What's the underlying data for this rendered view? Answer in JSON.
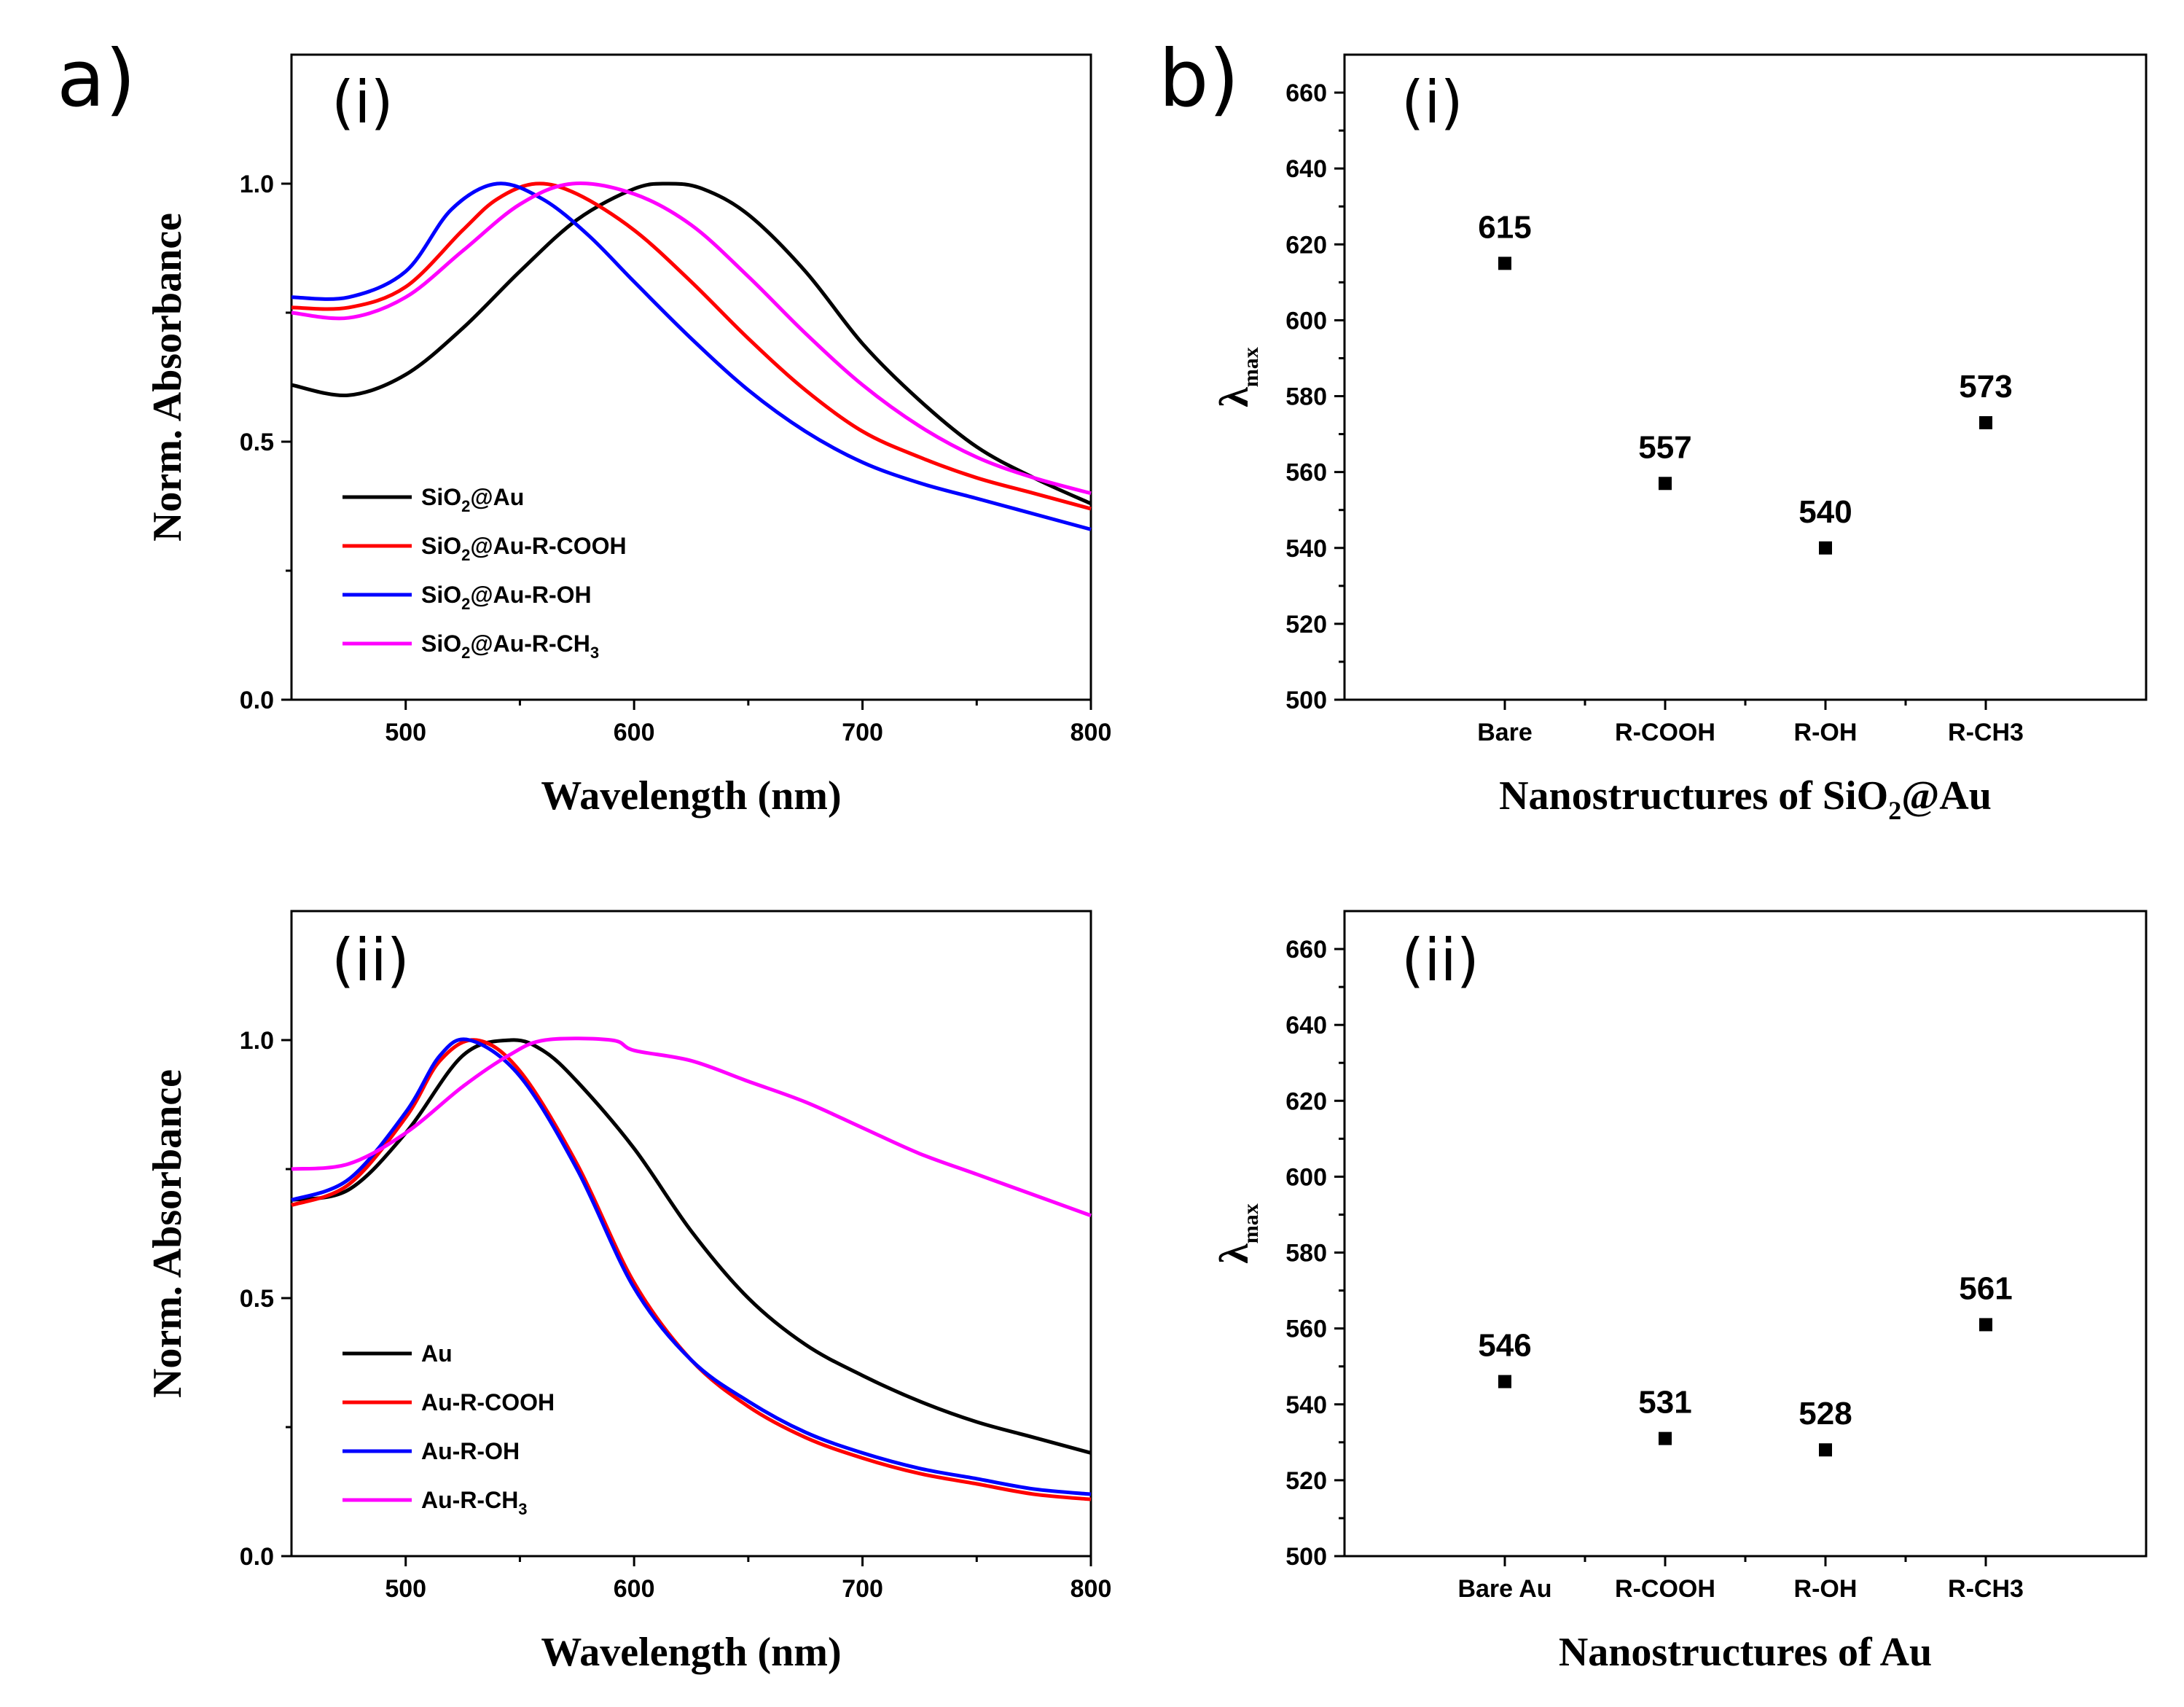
{
  "colors": {
    "black": "#000000",
    "red": "#ff0000",
    "blue": "#0000ff",
    "magenta": "#ff00ff"
  },
  "chart_data": [
    {
      "id": "a-i",
      "type": "line",
      "panel_letter": "a)",
      "sub_label": "(i)",
      "xlabel": "Wavelength (nm)",
      "ylabel": "Norm. Absorbance",
      "xlim": [
        450,
        800
      ],
      "ylim": [
        0,
        1.25
      ],
      "xticks": [
        "500",
        "600",
        "700",
        "800"
      ],
      "yticks": [
        "0.0",
        "0.5",
        "1.0"
      ],
      "series": [
        {
          "name": "SiO2@Au",
          "legend_main": "SiO",
          "legend_sub": "2",
          "legend_rest": "@Au",
          "color": "#000000",
          "x": [
            450,
            475,
            500,
            525,
            550,
            575,
            600,
            615,
            630,
            650,
            675,
            700,
            725,
            750,
            775,
            800
          ],
          "y": [
            0.61,
            0.59,
            0.63,
            0.72,
            0.83,
            0.93,
            0.99,
            1.0,
            0.99,
            0.94,
            0.83,
            0.69,
            0.58,
            0.49,
            0.43,
            0.38
          ]
        },
        {
          "name": "SiO2@Au-R-COOH",
          "legend_main": "SiO",
          "legend_sub": "2",
          "legend_rest": "@Au-R-COOH",
          "color": "#ff0000",
          "x": [
            450,
            475,
            500,
            525,
            540,
            557,
            575,
            600,
            625,
            650,
            675,
            700,
            725,
            750,
            775,
            800
          ],
          "y": [
            0.76,
            0.76,
            0.8,
            0.91,
            0.97,
            1.0,
            0.98,
            0.91,
            0.81,
            0.7,
            0.6,
            0.52,
            0.47,
            0.43,
            0.4,
            0.37
          ]
        },
        {
          "name": "SiO2@Au-R-OH",
          "legend_main": "SiO",
          "legend_sub": "2",
          "legend_rest": "@Au-R-OH",
          "color": "#0000ff",
          "x": [
            450,
            475,
            500,
            520,
            540,
            560,
            580,
            600,
            625,
            650,
            675,
            700,
            725,
            750,
            775,
            800
          ],
          "y": [
            0.78,
            0.78,
            0.83,
            0.95,
            1.0,
            0.97,
            0.9,
            0.81,
            0.7,
            0.6,
            0.52,
            0.46,
            0.42,
            0.39,
            0.36,
            0.33
          ]
        },
        {
          "name": "SiO2@Au-R-CH3",
          "legend_main": "SiO",
          "legend_sub": "2",
          "legend_rest": "@Au-R-CH",
          "legend_sub2": "3",
          "color": "#ff00ff",
          "x": [
            450,
            475,
            500,
            525,
            550,
            573,
            600,
            625,
            650,
            675,
            700,
            725,
            750,
            775,
            800
          ],
          "y": [
            0.75,
            0.74,
            0.78,
            0.87,
            0.96,
            1.0,
            0.98,
            0.92,
            0.82,
            0.71,
            0.61,
            0.53,
            0.47,
            0.43,
            0.4
          ]
        }
      ]
    },
    {
      "id": "b-i",
      "type": "scatter",
      "panel_letter": "b)",
      "sub_label": "(i)",
      "ylabel_main": "λ",
      "ylabel_sub": "max",
      "xlabel_main": "Nanostructures of SiO",
      "xlabel_sub": "2",
      "xlabel_rest": "@Au",
      "ylim": [
        500,
        670
      ],
      "yticks": [
        "500",
        "520",
        "540",
        "560",
        "580",
        "600",
        "620",
        "640",
        "660"
      ],
      "categories": [
        "Bare",
        "R-COOH",
        "R-OH",
        "R-CH3"
      ],
      "values": [
        615,
        557,
        540,
        573
      ],
      "value_labels": [
        "615",
        "557",
        "540",
        "573"
      ]
    },
    {
      "id": "a-ii",
      "type": "line",
      "sub_label": "(ii)",
      "xlabel": "Wavelength (nm)",
      "ylabel": "Norm. Absorbance",
      "xlim": [
        450,
        800
      ],
      "ylim": [
        0,
        1.25
      ],
      "xticks": [
        "500",
        "600",
        "700",
        "800"
      ],
      "yticks": [
        "0.0",
        "0.5",
        "1.0"
      ],
      "series": [
        {
          "name": "Au",
          "legend_main": "Au",
          "color": "#000000",
          "x": [
            450,
            475,
            500,
            525,
            546,
            560,
            575,
            600,
            625,
            650,
            675,
            700,
            725,
            750,
            775,
            800
          ],
          "y": [
            0.69,
            0.71,
            0.82,
            0.97,
            1.0,
            0.98,
            0.92,
            0.79,
            0.63,
            0.5,
            0.41,
            0.35,
            0.3,
            0.26,
            0.23,
            0.2
          ]
        },
        {
          "name": "Au-R-COOH",
          "legend_main": "Au-R-COOH",
          "color": "#ff0000",
          "x": [
            450,
            475,
            500,
            515,
            531,
            550,
            575,
            600,
            625,
            650,
            675,
            700,
            725,
            750,
            775,
            800
          ],
          "y": [
            0.68,
            0.72,
            0.85,
            0.96,
            1.0,
            0.94,
            0.76,
            0.53,
            0.38,
            0.29,
            0.23,
            0.19,
            0.16,
            0.14,
            0.12,
            0.11
          ]
        },
        {
          "name": "Au-R-OH",
          "legend_main": "Au-R-OH",
          "color": "#0000ff",
          "x": [
            450,
            475,
            500,
            515,
            528,
            550,
            575,
            600,
            625,
            650,
            675,
            700,
            725,
            750,
            775,
            800
          ],
          "y": [
            0.69,
            0.73,
            0.86,
            0.97,
            1.0,
            0.93,
            0.75,
            0.52,
            0.38,
            0.3,
            0.24,
            0.2,
            0.17,
            0.15,
            0.13,
            0.12
          ]
        },
        {
          "name": "Au-R-CH3",
          "legend_main": "Au-R-CH",
          "legend_sub": "3",
          "color": "#ff00ff",
          "x": [
            450,
            475,
            500,
            525,
            545,
            561,
            590,
            600,
            625,
            650,
            675,
            700,
            725,
            750,
            775,
            800
          ],
          "y": [
            0.75,
            0.76,
            0.82,
            0.91,
            0.97,
            1.0,
            1.0,
            0.98,
            0.96,
            0.92,
            0.88,
            0.83,
            0.78,
            0.74,
            0.7,
            0.66
          ]
        }
      ]
    },
    {
      "id": "b-ii",
      "type": "scatter",
      "sub_label": "(ii)",
      "ylabel_main": "λ",
      "ylabel_sub": "max",
      "xlabel_main": "Nanostructures of Au",
      "ylim": [
        500,
        670
      ],
      "yticks": [
        "500",
        "520",
        "540",
        "560",
        "580",
        "600",
        "620",
        "640",
        "660"
      ],
      "categories": [
        "Bare Au",
        "R-COOH",
        "R-OH",
        "R-CH3"
      ],
      "values": [
        546,
        531,
        528,
        561
      ],
      "value_labels": [
        "546",
        "531",
        "528",
        "561"
      ]
    }
  ]
}
